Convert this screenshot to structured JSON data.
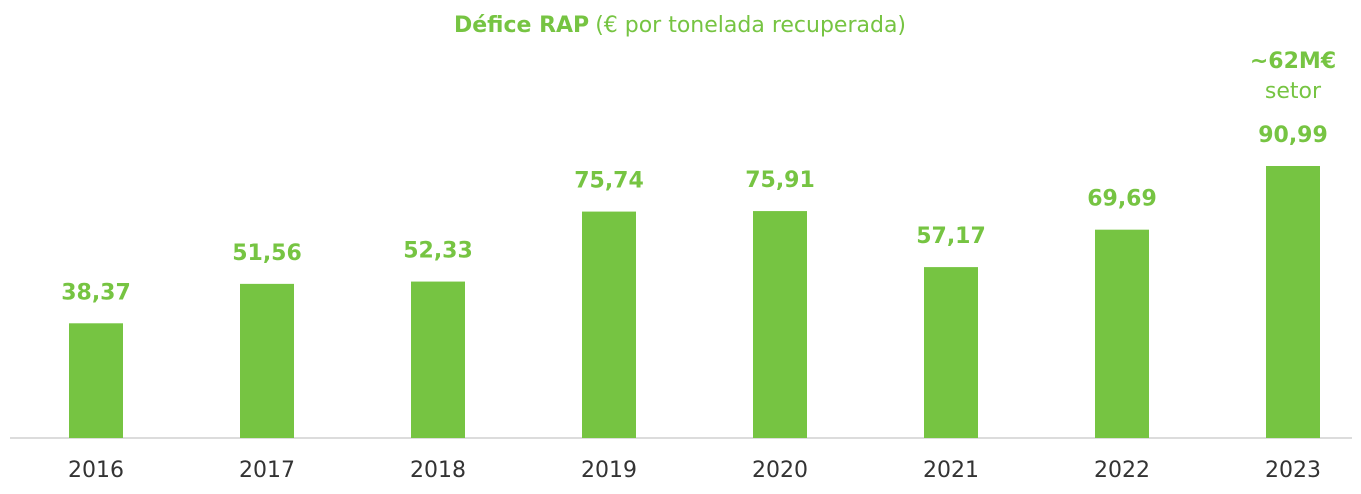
{
  "chart_data": {
    "type": "bar",
    "title": "Défice RAP",
    "title_note": "(€ por tonelada recuperada)",
    "categories": [
      "2016",
      "2017",
      "2018",
      "2019",
      "2020",
      "2021",
      "2022",
      "2023"
    ],
    "values": [
      38.37,
      51.56,
      52.33,
      75.74,
      75.91,
      57.17,
      69.69,
      90.99
    ],
    "value_labels": [
      "38,37",
      "51,56",
      "52,33",
      "75,74",
      "75,91",
      "57,17",
      "69,69",
      "90,99"
    ],
    "color": "#76c442",
    "annotations": [
      "~62M€",
      "setor"
    ]
  }
}
